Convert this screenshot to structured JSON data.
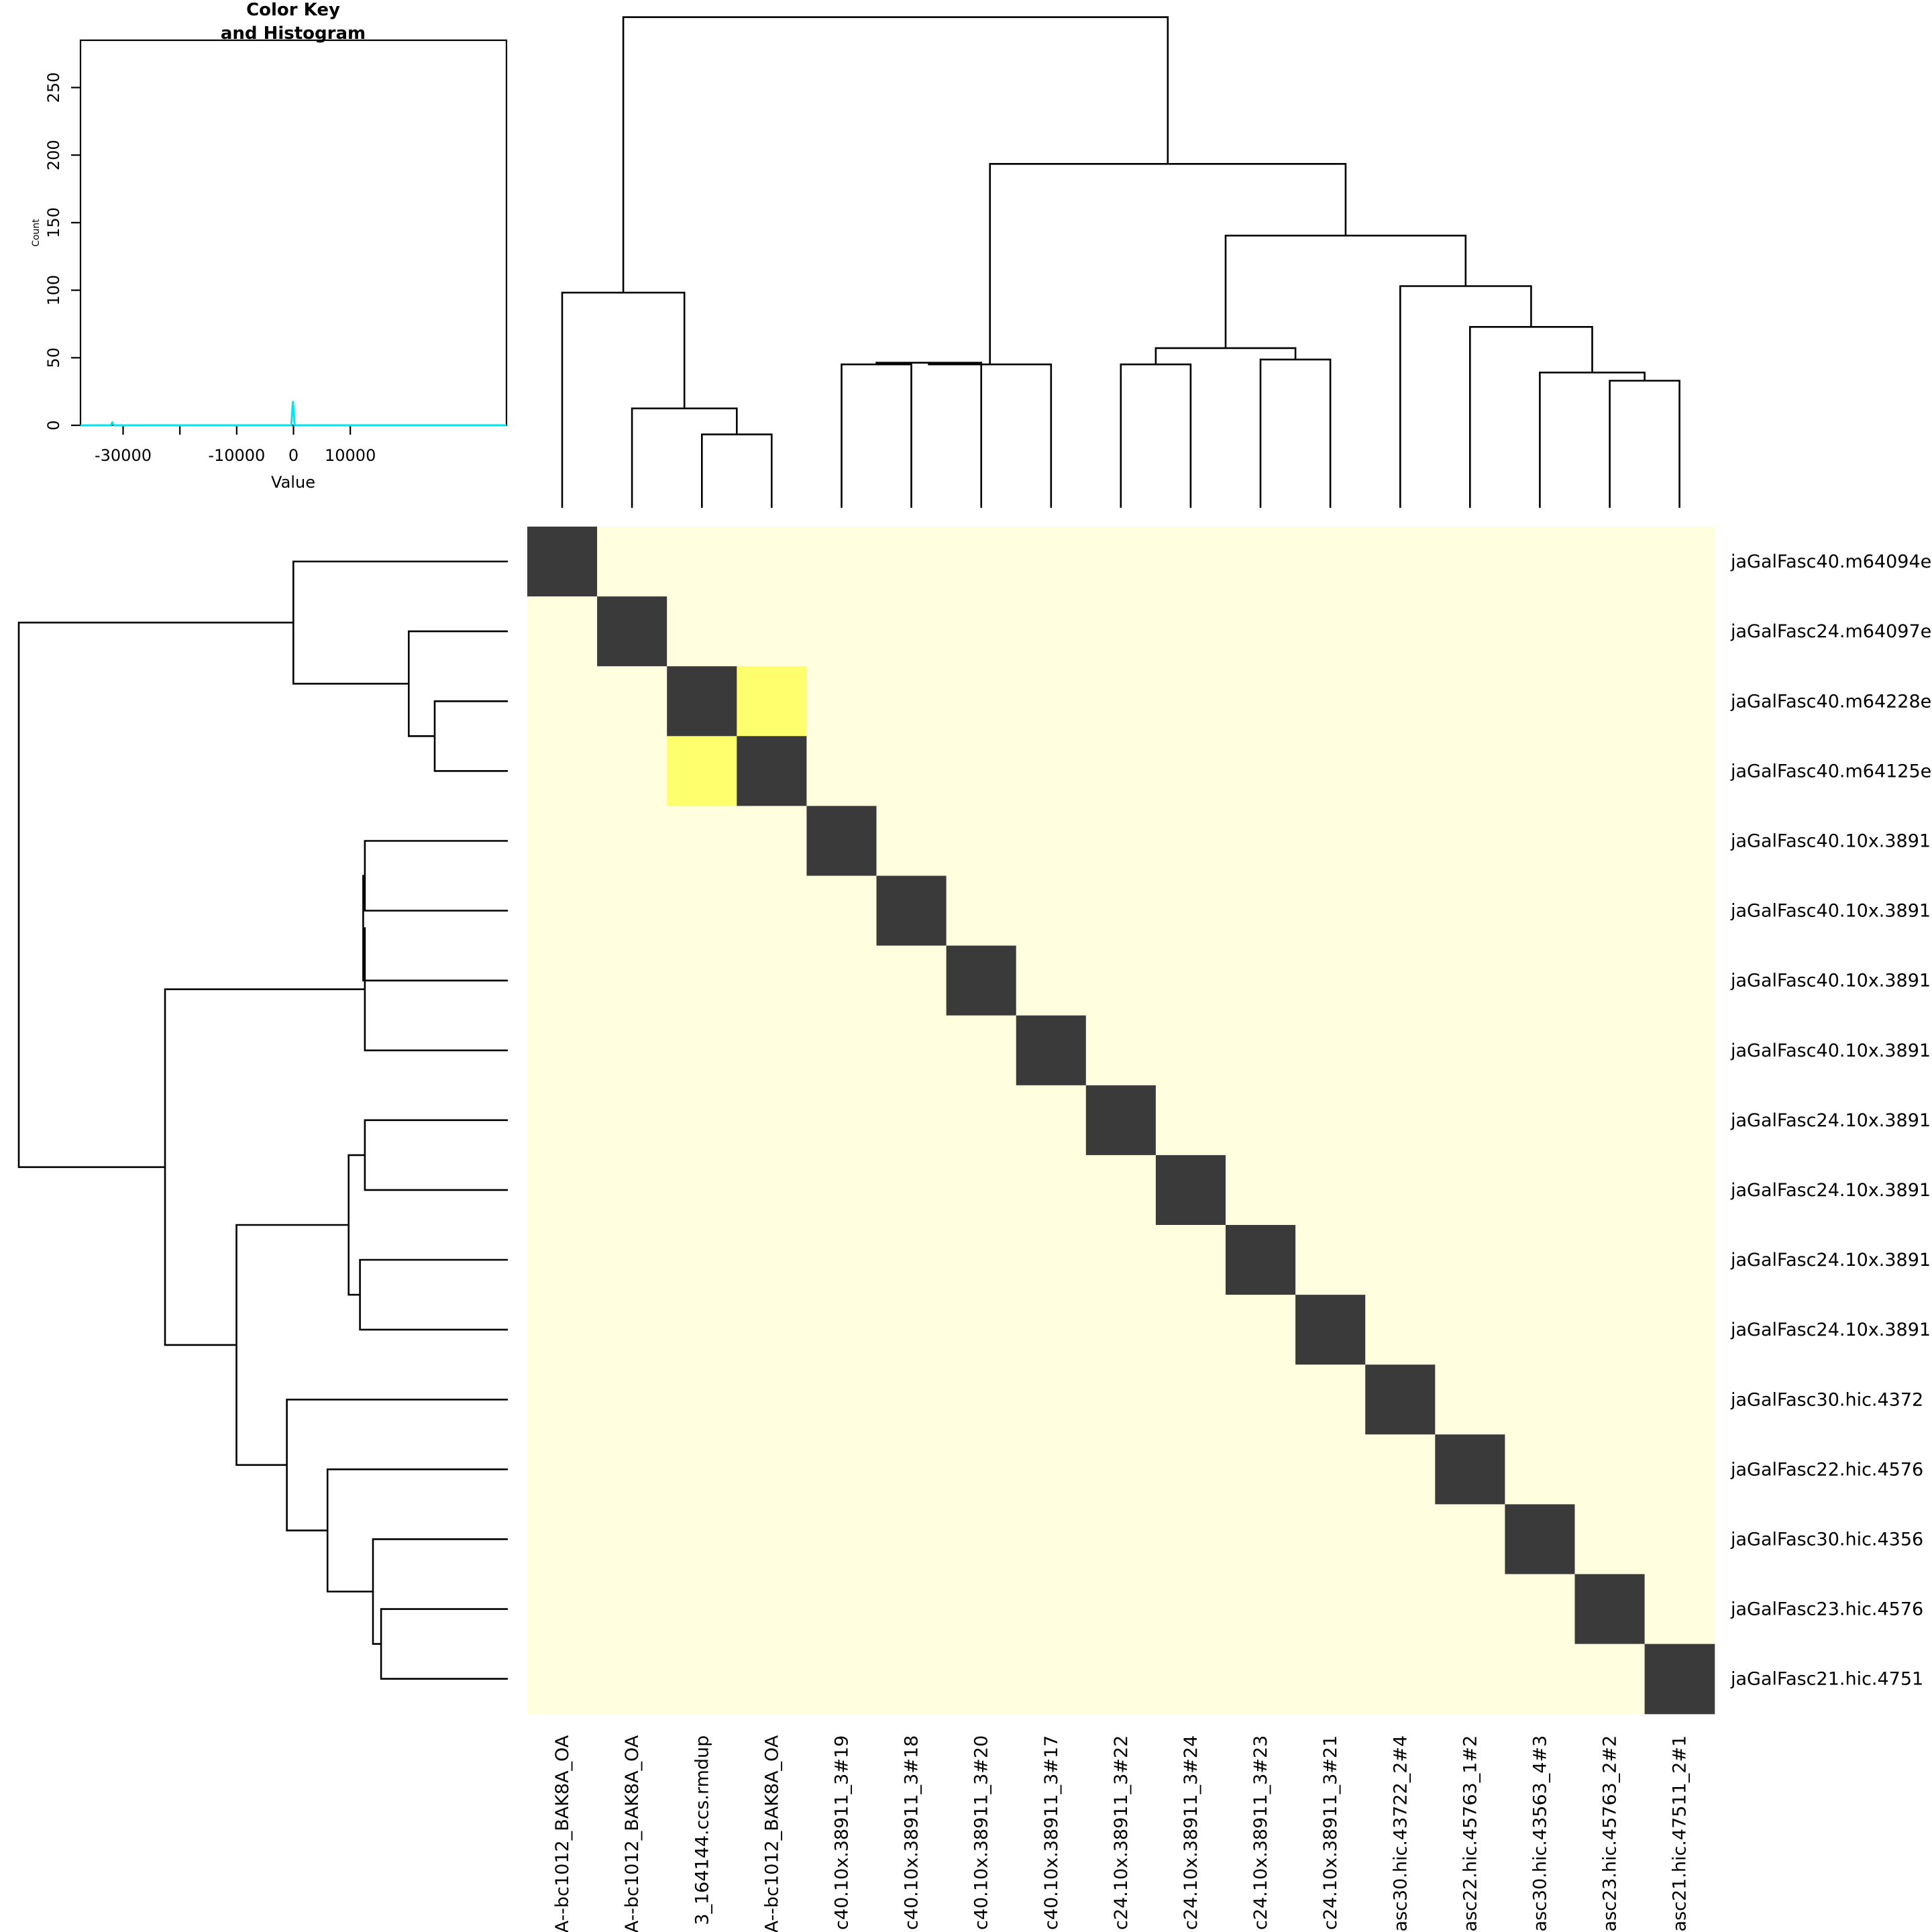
{
  "colors": {
    "background": "#ffffff",
    "low": "#ffffe0",
    "mid": "#ffff6e",
    "high": "#3a3a3a",
    "histogram_line": "#00e5ee"
  },
  "chart_data": [
    {
      "type": "heatmap",
      "title": "",
      "row_labels": [
        "jaGalFasc40.m64094e",
        "jaGalFasc24.m64097e",
        "jaGalFasc40.m64228e",
        "jaGalFasc40.m64125e",
        "jaGalFasc40.10x.3891",
        "jaGalFasc40.10x.3891",
        "jaGalFasc40.10x.3891",
        "jaGalFasc40.10x.3891",
        "jaGalFasc24.10x.3891",
        "jaGalFasc24.10x.3891",
        "jaGalFasc24.10x.3891",
        "jaGalFasc24.10x.3891",
        "jaGalFasc30.hic.4372",
        "jaGalFasc22.hic.4576",
        "jaGalFasc30.hic.4356",
        "jaGalFasc23.hic.4576",
        "jaGalFasc21.hic.4751"
      ],
      "col_labels": [
        "A--bc1012_BAK8A_OA",
        "A--bc1012_BAK8A_OA",
        "3_164144.ccs.rmdup",
        "A--bc1012_BAK8A_OA",
        "c40.10x.38911_3#19",
        "c40.10x.38911_3#18",
        "c40.10x.38911_3#20",
        "c40.10x.38911_3#17",
        "c24.10x.38911_3#22",
        "c24.10x.38911_3#24",
        "c24.10x.38911_3#23",
        "c24.10x.38911_3#21",
        "asc30.hic.43722_2#4",
        "asc22.hic.45763_1#2",
        "asc30.hic.43563_4#3",
        "asc23.hic.45763_2#2",
        "asc21.hic.47511_2#1"
      ],
      "cells": {
        "diagonal": "high",
        "off_diagonal": "low",
        "mid_pairs": [
          [
            2,
            3
          ],
          [
            3,
            2
          ]
        ]
      },
      "column_dendrogram": {
        "order": [
          0,
          1,
          2,
          3,
          4,
          5,
          6,
          7,
          8,
          9,
          10,
          11,
          12,
          13,
          14,
          15,
          16
        ],
        "ylim": [
          0,
          300
        ],
        "merges": [
          [
            -3,
            -4,
            45
          ],
          [
            -2,
            1,
            61
          ],
          [
            -1,
            2,
            132
          ],
          [
            -5,
            -6,
            88
          ],
          [
            4,
            -7,
            89
          ],
          [
            5,
            -8,
            88
          ],
          [
            -9,
            -10,
            88
          ],
          [
            -11,
            -12,
            91
          ],
          [
            7,
            8,
            98
          ],
          [
            -16,
            -17,
            78
          ],
          [
            -15,
            10,
            83
          ],
          [
            -14,
            11,
            111
          ],
          [
            -13,
            12,
            136
          ],
          [
            9,
            13,
            167
          ],
          [
            6,
            14,
            211
          ],
          [
            3,
            15,
            301
          ]
        ]
      },
      "row_dendrogram": {
        "order": [
          0,
          1,
          2,
          3,
          4,
          5,
          6,
          7,
          8,
          9,
          10,
          11,
          12,
          13,
          14,
          15,
          16
        ],
        "merges": [
          [
            -3,
            -4,
            45
          ],
          [
            -2,
            1,
            61
          ],
          [
            -1,
            2,
            132
          ],
          [
            -5,
            -6,
            88
          ],
          [
            4,
            -7,
            89
          ],
          [
            5,
            -8,
            88
          ],
          [
            -9,
            -10,
            88
          ],
          [
            -11,
            -12,
            91
          ],
          [
            7,
            8,
            98
          ],
          [
            -16,
            -17,
            78
          ],
          [
            -15,
            10,
            83
          ],
          [
            -14,
            11,
            111
          ],
          [
            -13,
            12,
            136
          ],
          [
            9,
            13,
            167
          ],
          [
            6,
            14,
            211
          ],
          [
            3,
            15,
            301
          ]
        ]
      }
    },
    {
      "type": "line",
      "title": "Color Key\nand Histogram",
      "xlabel": "Value",
      "ylabel": "Count",
      "xlim": [
        -37500,
        37500
      ],
      "ylim": [
        0,
        285
      ],
      "x_ticks": [
        -30000,
        -20000,
        -10000,
        0,
        10000
      ],
      "x_tick_labels": [
        "-30000",
        "",
        "-10000",
        "0",
        "10000"
      ],
      "y_ticks": [
        0,
        50,
        100,
        150,
        200,
        250
      ],
      "y_tick_labels": [
        "0",
        "50",
        "100",
        "150",
        "200",
        "250"
      ],
      "series": [
        {
          "x": [
            -37500,
            -32200,
            -31900,
            -31600,
            -400,
            -100,
            200,
            500,
            37500
          ],
          "values": [
            0,
            0,
            2,
            0,
            0,
            18,
            0,
            0,
            0
          ]
        }
      ]
    }
  ]
}
